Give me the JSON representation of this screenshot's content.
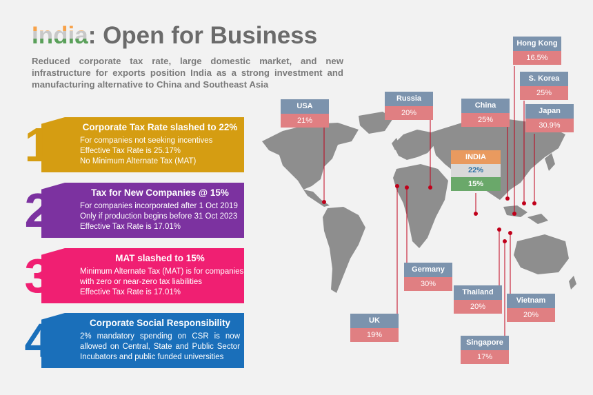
{
  "header": {
    "title_highlight": "India",
    "title_rest": ": Open for Business",
    "subtitle": "Reduced corporate tax rate, large domestic market, and new infrastructure for exports position India as a strong investment and manufacturing alternative to China and Southeast Asia"
  },
  "items": [
    {
      "number": "1",
      "color": "#d59d12",
      "heading": "Corporate Tax Rate slashed to 22%",
      "lines": [
        "For companies not seeking incentives",
        "Effective Tax Rate is 25.17%",
        "No Minimum Alternate Tax (MAT)"
      ]
    },
    {
      "number": "2",
      "color": "#7c32a0",
      "heading": "Tax for New Companies @ 15%",
      "lines": [
        "For companies  incorporated after 1 Oct 2019",
        "Only if production begins before 31 Oct 2023",
        "Effective Tax Rate is 17.01%"
      ]
    },
    {
      "number": "3",
      "color": "#f01f72",
      "heading": "MAT slashed to 15%",
      "lines": [
        "Minimum Alternate Tax (MAT) is for companies",
        "with zero or near-zero tax liabilities",
        "Effective Tax Rate is 17.01%"
      ]
    },
    {
      "number": "4",
      "color": "#1a6fba",
      "heading": "Corporate Social Responsibility",
      "paragraph": "2% mandatory spending on CSR is now allowed on Central, State and Public Sector Incubators and public funded universities"
    }
  ],
  "india": {
    "name": "INDIA",
    "rate1": "22%",
    "rate2": "15%"
  },
  "countries": [
    {
      "name": "USA",
      "rate": "21%"
    },
    {
      "name": "Russia",
      "rate": "20%"
    },
    {
      "name": "China",
      "rate": "25%"
    },
    {
      "name": "Hong Kong",
      "rate": "16.5%"
    },
    {
      "name": "S. Korea",
      "rate": "25%"
    },
    {
      "name": "Japan",
      "rate": "30.9%"
    },
    {
      "name": "Germany",
      "rate": "30%"
    },
    {
      "name": "UK",
      "rate": "19%"
    },
    {
      "name": "Thailand",
      "rate": "20%"
    },
    {
      "name": "Vietnam",
      "rate": "20%"
    },
    {
      "name": "Singapore",
      "rate": "17%"
    }
  ],
  "colors": {
    "country_name_bg": "#7c93ad",
    "country_rate_bg": "#e07f82",
    "leader_line": "#c0001a",
    "map_fill": "#8e8e8e"
  }
}
